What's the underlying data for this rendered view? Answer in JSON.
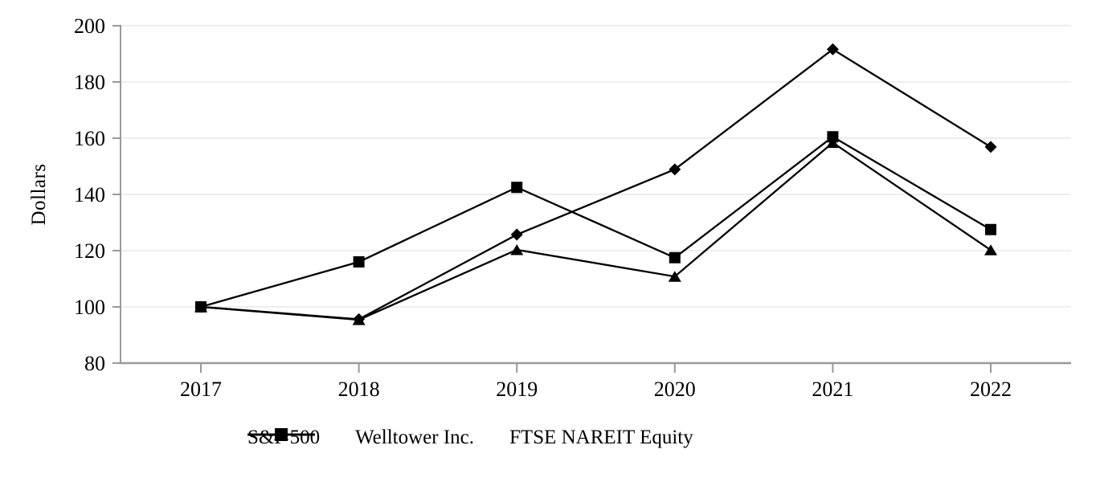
{
  "chart_data": {
    "type": "line",
    "title": "",
    "xlabel": "",
    "ylabel": "Dollars",
    "categories": [
      "2017",
      "2018",
      "2019",
      "2020",
      "2021",
      "2022"
    ],
    "ylim": [
      80,
      200
    ],
    "y_ticks": [
      80,
      100,
      120,
      140,
      160,
      180,
      200
    ],
    "grid": "horizontal gridlines on",
    "legend_position": "bottom center",
    "series": [
      {
        "name": "S&P 500",
        "marker": "diamond",
        "values": [
          100,
          95.6,
          125.7,
          148.9,
          191.6,
          156.9
        ]
      },
      {
        "name": "Welltower Inc.",
        "marker": "square",
        "values": [
          100,
          116.0,
          142.5,
          117.5,
          160.5,
          127.5
        ]
      },
      {
        "name": "FTSE NAREIT Equity",
        "marker": "triangle",
        "values": [
          100,
          95.4,
          120.3,
          110.8,
          158.4,
          120.2
        ]
      }
    ],
    "colors": {
      "series_line": "#000000",
      "marker_fill": "#000000",
      "axis": "#999999",
      "gridline": "#e8e8e8",
      "text": "#000000"
    }
  }
}
